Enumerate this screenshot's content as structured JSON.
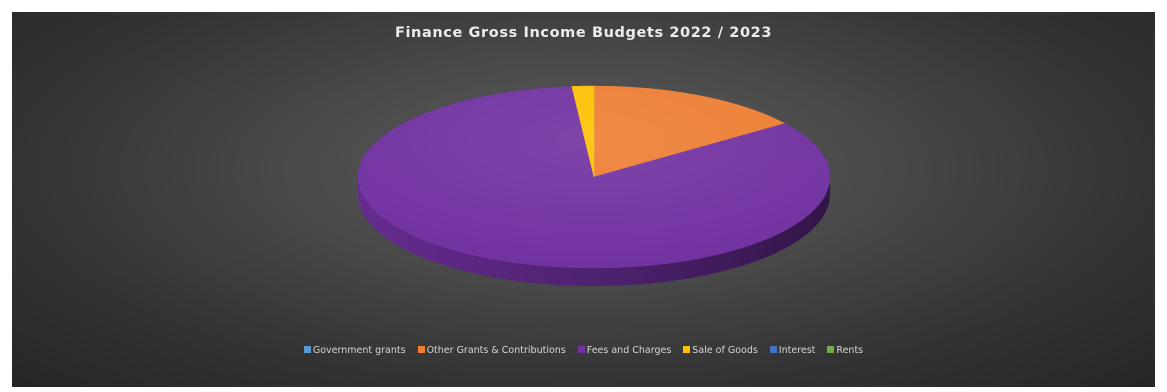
{
  "chart_data": {
    "type": "pie",
    "title": "Finance Gross Income Budgets 2022 / 2023",
    "legend_position": "bottom",
    "style": "3d",
    "series": [
      {
        "name": "Government grants",
        "value": 0,
        "color": "#5b9bd5"
      },
      {
        "name": "Other Grants & Contributions",
        "value": 15,
        "color": "#ed7d31"
      },
      {
        "name": "Fees and Charges",
        "value": 83.5,
        "color": "#7030a0"
      },
      {
        "name": "Sale of Goods",
        "value": 1.5,
        "color": "#ffc000"
      },
      {
        "name": "Interest",
        "value": 0,
        "color": "#4472c4"
      },
      {
        "name": "Rents",
        "value": 0,
        "color": "#70ad47"
      }
    ]
  }
}
